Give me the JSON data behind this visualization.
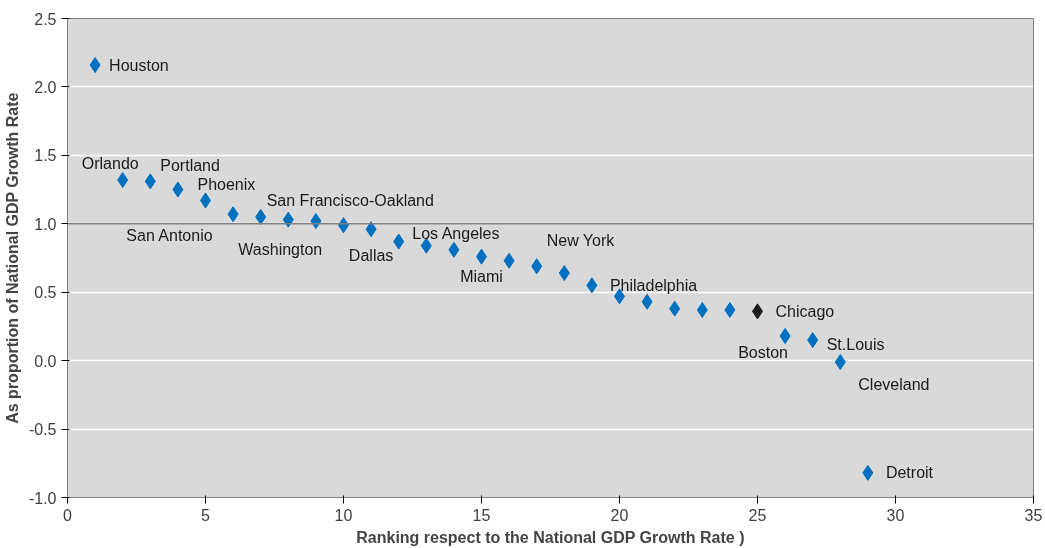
{
  "chart_data": {
    "type": "scatter",
    "xlabel": "Ranking respect to the National GDP Growth Rate )",
    "ylabel": "As proportion of National GDP Growth Rate",
    "x": [
      1,
      2,
      3,
      4,
      5,
      6,
      7,
      8,
      9,
      10,
      11,
      12,
      13,
      14,
      15,
      16,
      17,
      18,
      19,
      20,
      21,
      22,
      23,
      24,
      25,
      26,
      27,
      28,
      29
    ],
    "values": [
      2.16,
      1.32,
      1.31,
      1.25,
      1.17,
      1.07,
      1.05,
      1.03,
      1.02,
      0.99,
      0.96,
      0.87,
      0.84,
      0.81,
      0.76,
      0.73,
      0.69,
      0.64,
      0.55,
      0.47,
      0.43,
      0.38,
      0.37,
      0.37,
      0.36,
      0.18,
      0.15,
      -0.01,
      -0.82
    ],
    "colors": [
      "#0070c0",
      "#0070c0",
      "#0070c0",
      "#0070c0",
      "#0070c0",
      "#0070c0",
      "#0070c0",
      "#0070c0",
      "#0070c0",
      "#0070c0",
      "#0070c0",
      "#0070c0",
      "#0070c0",
      "#0070c0",
      "#0070c0",
      "#0070c0",
      "#0070c0",
      "#0070c0",
      "#0070c0",
      "#0070c0",
      "#0070c0",
      "#0070c0",
      "#0070c0",
      "#0070c0",
      "#1a1a1a",
      "#0070c0",
      "#0070c0",
      "#0070c0",
      "#0070c0"
    ],
    "marker": "diamond",
    "xlim": [
      0,
      35
    ],
    "xticks": [
      0,
      5,
      10,
      15,
      20,
      25,
      30,
      35
    ],
    "ylim": [
      -1.0,
      2.5
    ],
    "yticks": [
      {
        "value": -1.0,
        "label": "-1.0"
      },
      {
        "value": -0.5,
        "label": "-0.5"
      },
      {
        "value": 0.0,
        "label": "0.0"
      },
      {
        "value": 0.5,
        "label": "0.5"
      },
      {
        "value": 1.0,
        "label": "1.0"
      },
      {
        "value": 1.5,
        "label": "1.5"
      },
      {
        "value": 2.0,
        "label": "2.0"
      },
      {
        "value": 2.5,
        "label": "2.5"
      }
    ],
    "grid": "y",
    "ref_lines": [
      {
        "axis": "y",
        "value": 1.0,
        "color": "#808080"
      }
    ],
    "annotations": [
      {
        "text": "Houston",
        "x": 1,
        "y": 2.16
      },
      {
        "text": "Orlando",
        "x": 2,
        "y": 1.32
      },
      {
        "text": "Portland",
        "x": 3,
        "y": 1.31
      },
      {
        "text": "Phoenix",
        "x": 5,
        "y": 1.17
      },
      {
        "text": "San Antonio",
        "x": 4,
        "y": 1.25
      },
      {
        "text": "San Francisco-Oakland",
        "x": 7,
        "y": 1.05
      },
      {
        "text": "Washington",
        "x": 8,
        "y": 1.03
      },
      {
        "text": "Dallas",
        "x": 11,
        "y": 0.96
      },
      {
        "text": "Los Angeles",
        "x": 13,
        "y": 0.84
      },
      {
        "text": "Miami",
        "x": 15,
        "y": 0.76
      },
      {
        "text": "New York",
        "x": 17,
        "y": 0.69
      },
      {
        "text": "Philadelphia",
        "x": 19,
        "y": 0.55
      },
      {
        "text": "Chicago",
        "x": 25,
        "y": 0.36
      },
      {
        "text": "Boston",
        "x": 26,
        "y": 0.18
      },
      {
        "text": "St.Louis",
        "x": 27,
        "y": 0.15
      },
      {
        "text": "Cleveland",
        "x": 28,
        "y": -0.01
      },
      {
        "text": "Detroit",
        "x": 29,
        "y": -0.82
      }
    ]
  }
}
